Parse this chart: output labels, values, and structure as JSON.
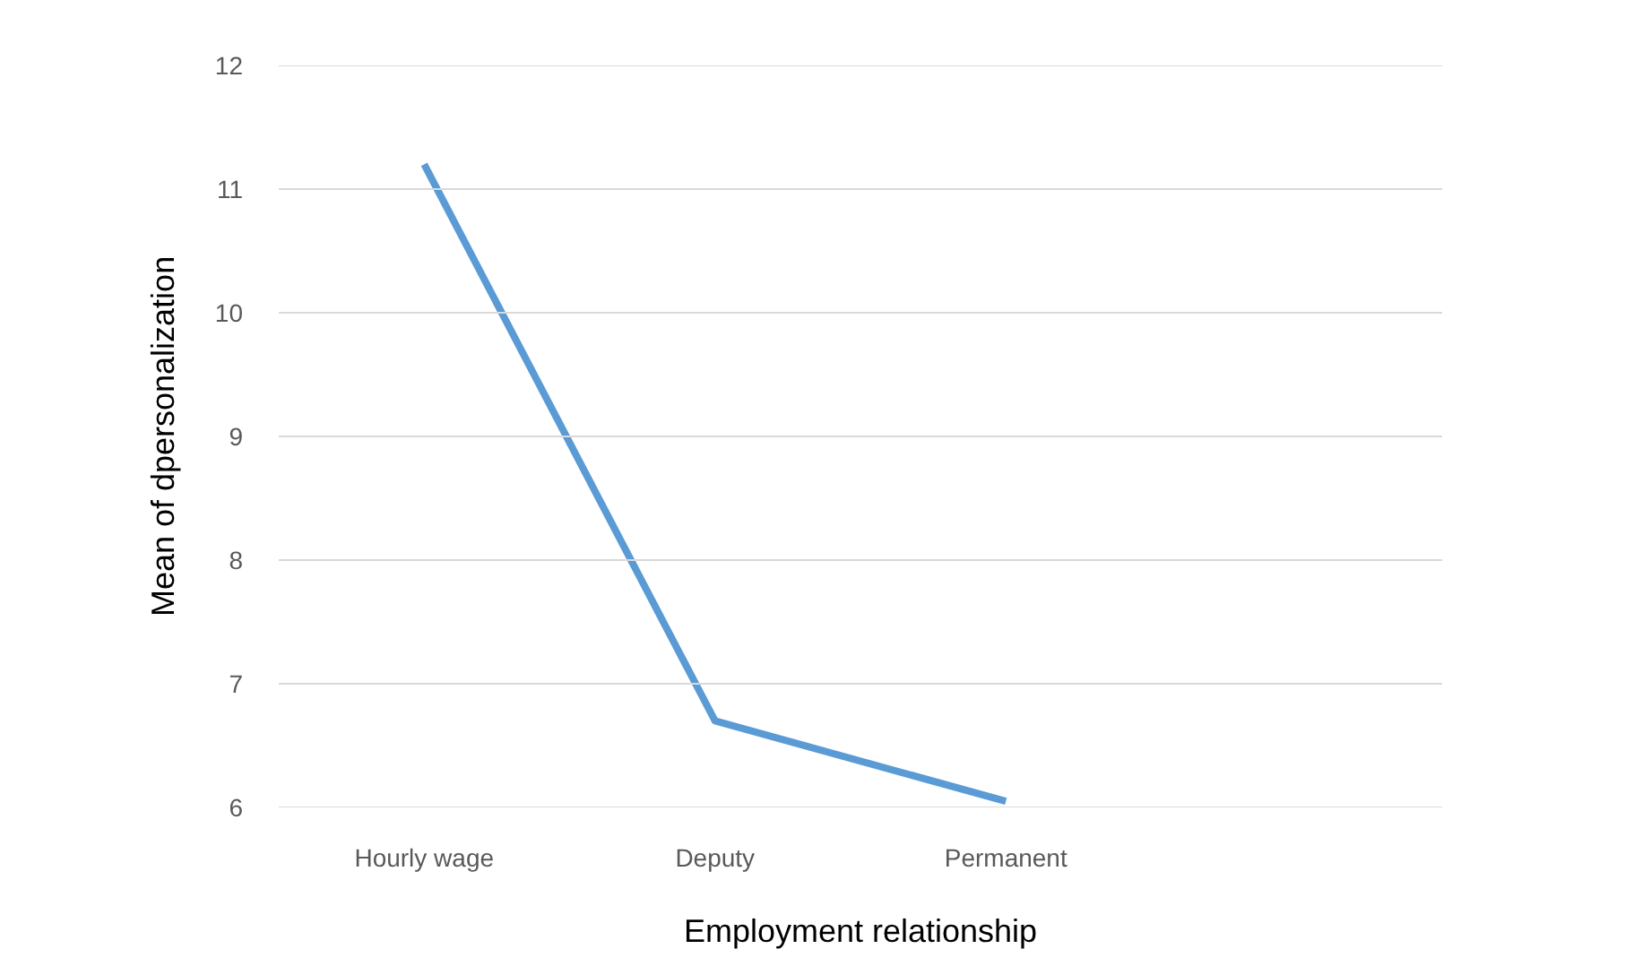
{
  "chart_data": {
    "type": "line",
    "xlabel": "Employment relationship",
    "ylabel": "Mean of dpersonalization",
    "categories": [
      "Hourly wage",
      "Deputy",
      "Permanent",
      null
    ],
    "series": [
      {
        "color": "#5b9bd5",
        "values": [
          11.2,
          6.7,
          6.05,
          null
        ]
      }
    ],
    "ylim": [
      6,
      12
    ],
    "yticks": [
      6,
      7,
      8,
      9,
      10,
      11,
      12
    ],
    "grid": "y",
    "marker": "none",
    "line_style": "solid"
  }
}
